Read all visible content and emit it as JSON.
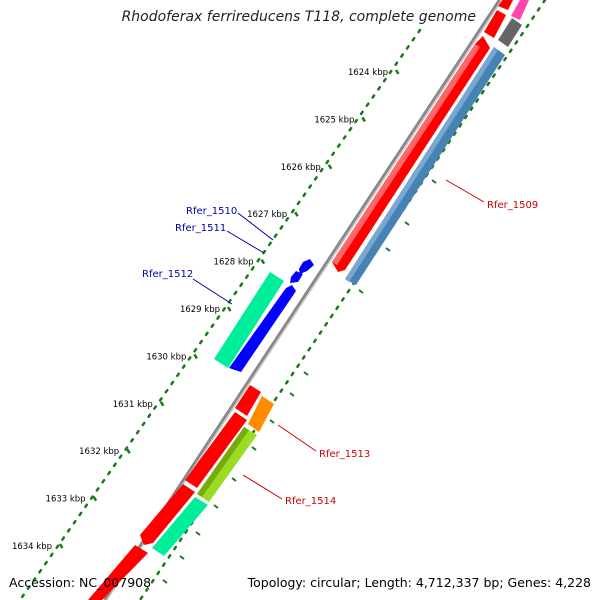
{
  "title": "Rhodoferax ferrireducens T118, complete genome",
  "footer": {
    "accession": "Accession: NC_007908",
    "summary": "Topology: circular; Length: 4,712,337 bp; Genes: 4,228"
  },
  "scale_ticks": [
    "1624 kbp",
    "1625 kbp",
    "1626 kbp",
    "1627 kbp",
    "1628 kbp",
    "1629 kbp",
    "1630 kbp",
    "1631 kbp",
    "1632 kbp",
    "1633 kbp",
    "1634 kbp"
  ],
  "gene_labels": [
    {
      "name": "Rfer_1509",
      "color": "#cc0000"
    },
    {
      "name": "Rfer_1510",
      "color": "#0000aa"
    },
    {
      "name": "Rfer_1511",
      "color": "#0000aa"
    },
    {
      "name": "Rfer_1512",
      "color": "#0000aa"
    },
    {
      "name": "Rfer_1513",
      "color": "#cc0000"
    },
    {
      "name": "Rfer_1514",
      "color": "#cc0000"
    }
  ],
  "colors": {
    "forward_cds": "#ff0000",
    "reverse_cds": "#0000ff",
    "orf_teal": "#00ee99",
    "orf_steelblue": "#4682b4",
    "orf_orange": "#ff8c00",
    "orf_yellowgreen": "#aadd33",
    "orf_gray": "#666666",
    "orf_magenta": "#ff44aa",
    "backbone": "#888888",
    "gc_dots": "#1a7a1a"
  }
}
